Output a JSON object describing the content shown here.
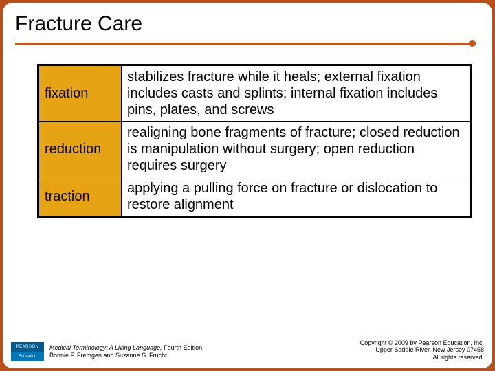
{
  "slide": {
    "title": "Fracture Care",
    "table": {
      "rows": [
        {
          "term": "fixation",
          "definition": "stabilizes fracture while it heals; external fixation includes casts and splints; internal fixation includes pins, plates, and screws"
        },
        {
          "term": "reduction",
          "definition": "realigning bone fragments of fracture; closed reduction is manipulation without surgery; open reduction requires surgery"
        },
        {
          "term": "traction",
          "definition": "applying a pulling force on fracture or dislocation to restore alignment"
        }
      ]
    },
    "styling": {
      "frame_color": "#b8501c",
      "slide_bg": "#ffffff",
      "underline_color": "#c2571e",
      "term_cell_bg": "#e6a314",
      "title_fontsize": 30,
      "body_fontsize": 20,
      "footer_fontsize": 9
    }
  },
  "footer": {
    "logo": {
      "top": "PEARSON",
      "bottom": "Education"
    },
    "book_title": "Medical Terminology: A Living Language,",
    "edition": " Fourth Edition",
    "authors": "Bonnie F. Fremgen and Suzanne S. Frucht",
    "copyright_line1": "Copyright © 2009 by Pearson Education, Inc.",
    "copyright_line2": "Upper Saddle River, New Jersey 07458",
    "copyright_line3": "All rights reserved."
  }
}
